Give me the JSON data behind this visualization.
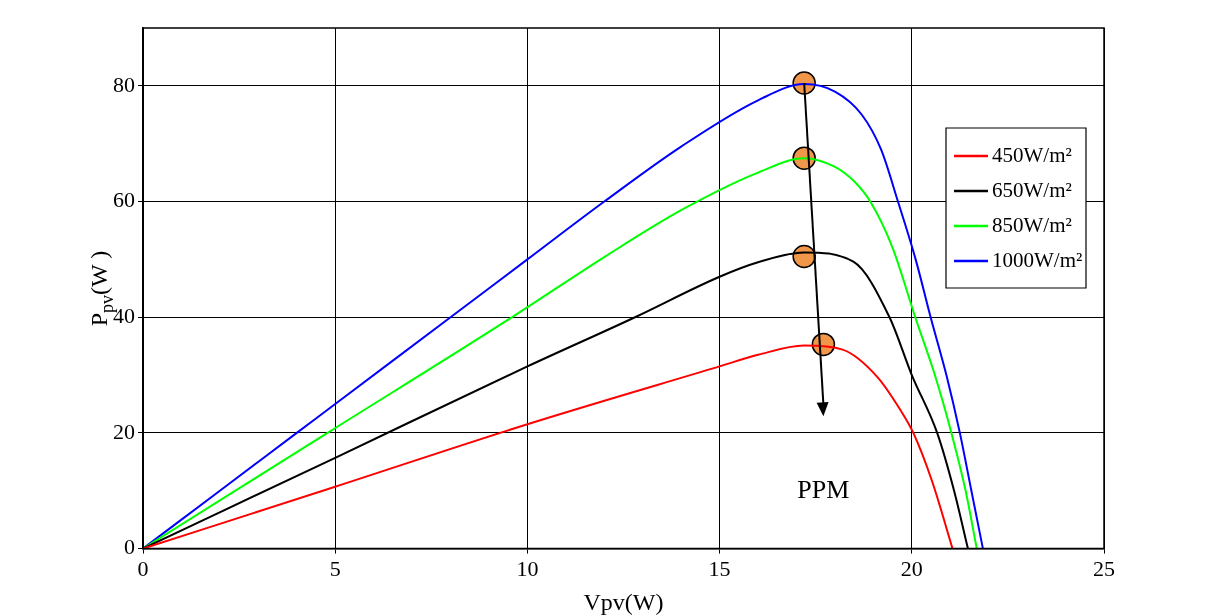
{
  "chart_data": {
    "type": "line",
    "xlabel": "Vpv(W)",
    "ylabel": "P$_{pv}$(W )",
    "xlim": [
      0,
      25
    ],
    "xticks": [
      0,
      5,
      10,
      15,
      20,
      25
    ],
    "ylim": [
      0,
      90
    ],
    "yticks": [
      0,
      20,
      40,
      60,
      80
    ],
    "grid": true,
    "legend": "right",
    "marker": "none",
    "line_style": "solid",
    "series": [
      {
        "name": "450W/m²",
        "color": "#ff0000",
        "x": [
          0,
          5,
          10,
          15,
          16,
          17.2,
          18.2,
          19.1,
          19.7,
          20.04,
          20.53,
          21.06
        ],
        "values": [
          0,
          10.7,
          21.5,
          31.5,
          33.5,
          35.1,
          34.4,
          29.7,
          24,
          20,
          11.6,
          0
        ]
      },
      {
        "name": "650W/m²",
        "color": "#000000",
        "x": [
          0,
          5,
          10,
          12.8,
          15,
          16,
          17.2,
          18.48,
          19.42,
          20,
          20.66,
          21.1,
          21.46
        ],
        "values": [
          0,
          15.7,
          31.5,
          40,
          47,
          49.5,
          51.2,
          49.6,
          40,
          30,
          20,
          10,
          0
        ]
      },
      {
        "name": "850W/m²",
        "color": "#00ff00",
        "x": [
          0,
          4.8,
          9.6,
          12,
          14,
          16,
          17.2,
          18,
          18.5,
          18.92,
          19.5,
          20.09,
          20.6,
          21.03,
          21.4,
          21.69
        ],
        "values": [
          0,
          20,
          40,
          50.4,
          58.5,
          65,
          67.5,
          66,
          63.5,
          60,
          52,
          40,
          30,
          20,
          10,
          0
        ]
      },
      {
        "name": "1000W/m²",
        "color": "#0000ff",
        "x": [
          0,
          2,
          4,
          5,
          8,
          10,
          12,
          14,
          16,
          17.2,
          18,
          18.7,
          19.2,
          19.64,
          20.1,
          20.49,
          20.9,
          21.25,
          21.55,
          21.85
        ],
        "values": [
          0,
          10,
          20,
          25,
          40,
          50,
          60,
          69.5,
          77.5,
          80.3,
          79,
          75,
          69,
          60,
          50,
          40,
          30,
          20,
          10,
          0
        ]
      },
      {
        "type": "scatter",
        "marker": "circle",
        "color": "#f0974a",
        "x": [
          17.2,
          17.2,
          17.2,
          17.7
        ],
        "values": [
          80.5,
          67.5,
          50.5,
          35.3
        ]
      }
    ],
    "annotations": [
      "PPM"
    ]
  }
}
